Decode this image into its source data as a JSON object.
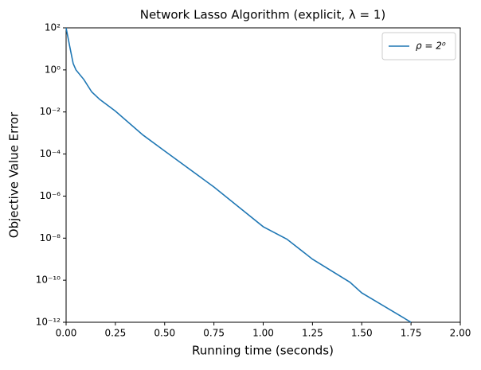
{
  "chart_data": {
    "type": "line",
    "title": "Network Lasso Algorithm (explicit, λ = 1)",
    "x_label": "Running time (seconds)",
    "y_label": "Objective Value Error",
    "yscale": "log",
    "grid": false,
    "legend": "upper right",
    "xlim": [
      0,
      2
    ],
    "ylim": [
      1e-12,
      100
    ],
    "xticks": [
      {
        "value": 0,
        "label": "0.00"
      },
      {
        "value": 0.25,
        "label": "0.25"
      },
      {
        "value": 0.5,
        "label": "0.50"
      },
      {
        "value": 0.75,
        "label": "0.75"
      },
      {
        "value": 1,
        "label": "1.00"
      },
      {
        "value": 1.25,
        "label": "1.25"
      },
      {
        "value": 1.5,
        "label": "1.50"
      },
      {
        "value": 1.75,
        "label": "1.75"
      },
      {
        "value": 2,
        "label": "2.00"
      }
    ],
    "yticks": [
      {
        "value": 1e-12,
        "label": "10⁻¹²"
      },
      {
        "value": 1e-10,
        "label": "10⁻¹⁰"
      },
      {
        "value": 1e-08,
        "label": "10⁻⁸"
      },
      {
        "value": 1e-06,
        "label": "10⁻⁶"
      },
      {
        "value": 0.0001,
        "label": "10⁻⁴"
      },
      {
        "value": 0.01,
        "label": "10⁻²"
      },
      {
        "value": 1,
        "label": "10⁰"
      },
      {
        "value": 100,
        "label": "10²"
      }
    ],
    "x": [
      0,
      0.02,
      0.036,
      0.05,
      0.09,
      0.13,
      0.17,
      0.25,
      0.39,
      0.5,
      0.75,
      1.0,
      1.12,
      1.25,
      1.44,
      1.5,
      1.75
    ],
    "series": [
      {
        "name": "ρ = 2⁰",
        "color": "#1f77b4",
        "values": [
          100,
          11,
          2,
          1,
          0.35,
          0.09,
          0.04,
          0.011,
          0.0008,
          0.00014,
          2.7e-06,
          3.5e-08,
          9e-09,
          1e-09,
          8e-11,
          2.5e-11,
          1e-12
        ]
      }
    ]
  }
}
